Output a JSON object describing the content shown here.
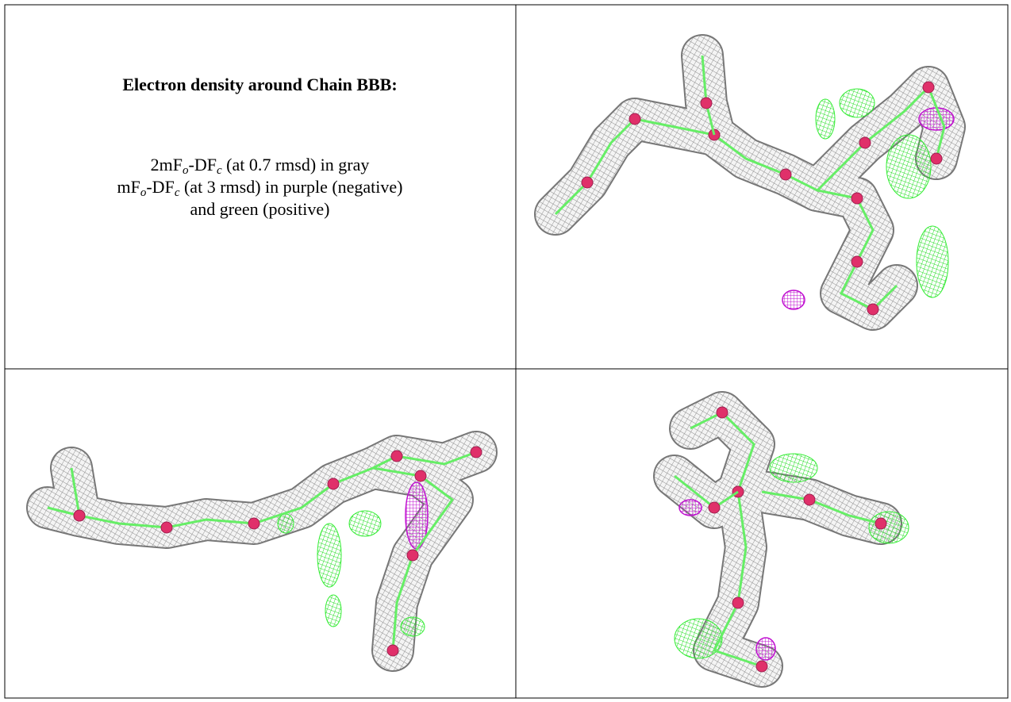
{
  "table": {
    "title": "Electron density around Chain BBB:",
    "legend": [
      [
        "2mF",
        "o",
        "-DF",
        "c",
        " (at 0.7 rmsd) in gray"
      ],
      [
        "mF",
        "o",
        "-DF",
        "c",
        " (at 3 rmsd) in purple (negative)"
      ],
      [
        "and green (positive)"
      ]
    ]
  }
}
